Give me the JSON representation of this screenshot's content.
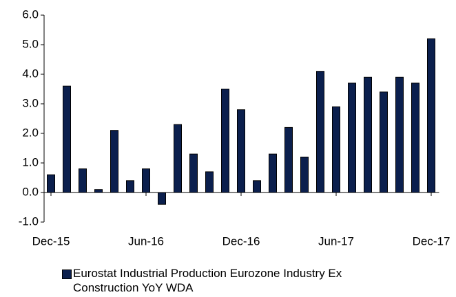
{
  "chart_data": {
    "type": "bar",
    "categories": [
      "Dec-15",
      null,
      null,
      null,
      null,
      null,
      "Jun-16",
      null,
      null,
      null,
      null,
      null,
      "Dec-16",
      null,
      null,
      null,
      null,
      null,
      "Jun-17",
      null,
      null,
      null,
      null,
      null,
      "Dec-17"
    ],
    "series": [
      {
        "name": "Eurostat Industrial Production Eurozone Industry Ex Construction YoY WDA",
        "color": "#0b1f4d",
        "values": [
          0.6,
          3.6,
          0.8,
          0.1,
          2.1,
          0.4,
          0.8,
          -0.4,
          2.3,
          1.3,
          0.7,
          3.5,
          2.8,
          0.4,
          1.3,
          2.2,
          1.2,
          4.1,
          2.9,
          3.7,
          3.9,
          3.4,
          3.9,
          3.7,
          5.2
        ]
      }
    ],
    "ylim": [
      -1,
      6
    ],
    "yticks": [
      {
        "value": -1,
        "label": "-1.0"
      },
      {
        "value": 0,
        "label": "0.0"
      },
      {
        "value": 1,
        "label": "1.0"
      },
      {
        "value": 2,
        "label": "2.0"
      },
      {
        "value": 3,
        "label": "3.0"
      },
      {
        "value": 4,
        "label": "4.0"
      },
      {
        "value": 5,
        "label": "5.0"
      },
      {
        "value": 6,
        "label": "6.0"
      }
    ],
    "grid": false
  }
}
